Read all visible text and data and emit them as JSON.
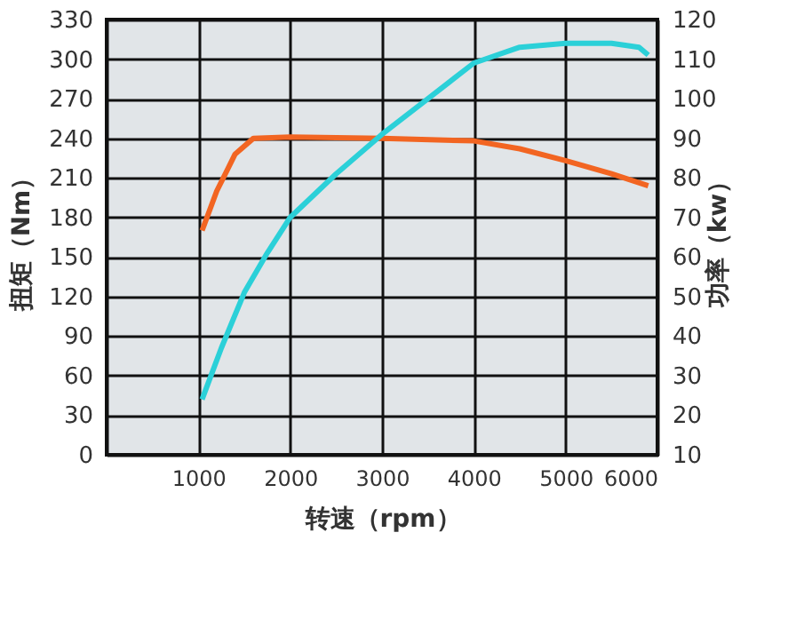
{
  "chart_data": {
    "type": "line",
    "xlabel": "转速（rpm）",
    "ylabel": "扭矩（Nm）",
    "y2label": "功率（kw）",
    "xlim": [
      0,
      6000
    ],
    "xticks": [
      {
        "value": 0,
        "label": null
      },
      1000,
      2000,
      3000,
      4000,
      5000,
      6000
    ],
    "ylim": [
      0,
      330
    ],
    "yticks": [
      0,
      30,
      60,
      90,
      120,
      150,
      180,
      210,
      240,
      270,
      300,
      330
    ],
    "y2lim": [
      10,
      120
    ],
    "y2ticks": [
      10,
      20,
      30,
      40,
      50,
      60,
      70,
      80,
      90,
      100,
      110,
      120
    ],
    "grid": true,
    "legend": false,
    "line_style": "solid",
    "marker": "none",
    "series": [
      {
        "color": "#f26522",
        "x": [
          1040,
          1200,
          1400,
          1600,
          2000,
          3000,
          4000,
          4500,
          5000,
          5500,
          5900
        ],
        "values": [
          170,
          200,
          228,
          240,
          241,
          240,
          238,
          232,
          223,
          213,
          204
        ]
      },
      {
        "color": "#2bd0d8",
        "axis": "y2",
        "x": [
          1040,
          1250,
          1500,
          1750,
          2000,
          2500,
          3000,
          3500,
          4000,
          4500,
          5000,
          5500,
          5800,
          5900
        ],
        "values": [
          24,
          37,
          51,
          61,
          70,
          81,
          91,
          100,
          109,
          113,
          114,
          114,
          113,
          111
        ]
      }
    ]
  }
}
